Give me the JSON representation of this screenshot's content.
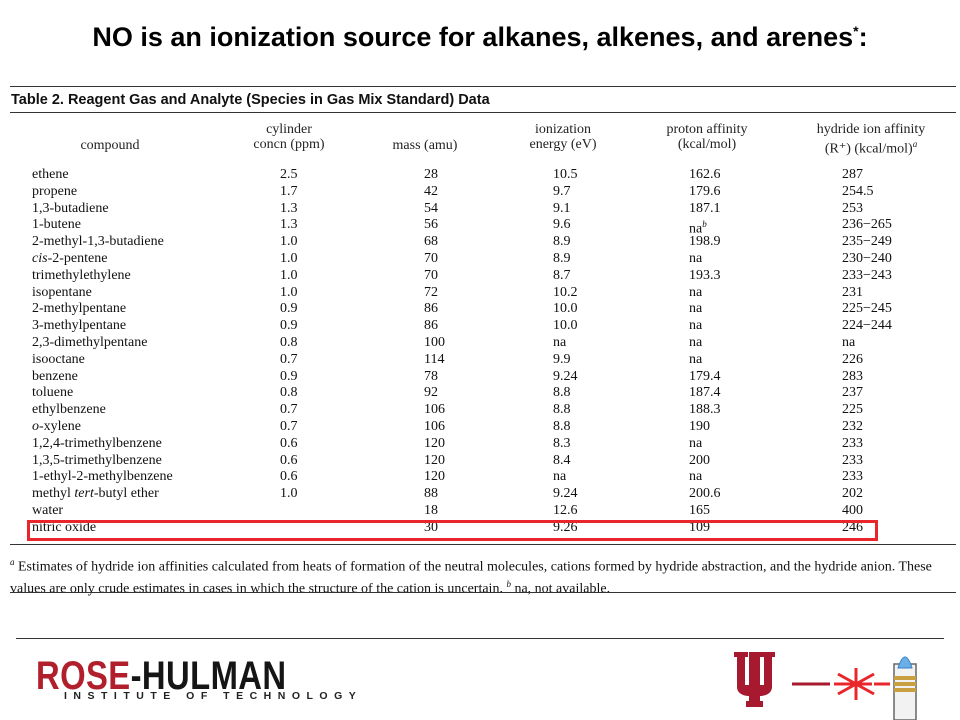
{
  "slide": {
    "title": "NO is an ionization source for alkanes, alkenes, and arenes",
    "title_sup": "*",
    "title_end": ":"
  },
  "table": {
    "title": "Table 2.  Reagent Gas and Analyte (Species in Gas Mix Standard) Data",
    "headers": {
      "compound": "compound",
      "concn_1": "cylinder",
      "concn_2": "concn (ppm)",
      "mass": "mass (amu)",
      "ie_1": "ionization",
      "ie_2": "energy (eV)",
      "pa_1": "proton affinity",
      "pa_2": "(kcal/mol)",
      "hia_1": "hydride ion affinity",
      "hia_2": "(R⁺)  (kcal/mol)",
      "hia_sup": "a"
    },
    "rows": [
      {
        "compound": "ethene",
        "concn": "2.5",
        "mass": "28",
        "ie": "10.5",
        "pa": "162.6",
        "hia": "287"
      },
      {
        "compound": "propene",
        "concn": "1.7",
        "mass": "42",
        "ie": "9.7",
        "pa": "179.6",
        "hia": "254.5"
      },
      {
        "compound": "1,3-butadiene",
        "concn": "1.3",
        "mass": "54",
        "ie": "9.1",
        "pa": "187.1",
        "hia": "253"
      },
      {
        "compound": "1-butene",
        "concn": "1.3",
        "mass": "56",
        "ie": "9.6",
        "pa": "na",
        "pa_sup": "b",
        "hia": "236−265"
      },
      {
        "compound": "2-methyl-1,3-butadiene",
        "concn": "1.0",
        "mass": "68",
        "ie": "8.9",
        "pa": "198.9",
        "hia": "235−249"
      },
      {
        "compound_italic": "cis",
        "compound": "-2-pentene",
        "concn": "1.0",
        "mass": "70",
        "ie": "8.9",
        "pa": "na",
        "hia": "230−240"
      },
      {
        "compound": "trimethylethylene",
        "concn": "1.0",
        "mass": "70",
        "ie": "8.7",
        "pa": "193.3",
        "hia": "233−243"
      },
      {
        "compound": "isopentane",
        "concn": "1.0",
        "mass": "72",
        "ie": "10.2",
        "pa": "na",
        "hia": "231"
      },
      {
        "compound": "2-methylpentane",
        "concn": "0.9",
        "mass": "86",
        "ie": "10.0",
        "pa": "na",
        "hia": "225−245"
      },
      {
        "compound": "3-methylpentane",
        "concn": "0.9",
        "mass": "86",
        "ie": "10.0",
        "pa": "na",
        "hia": "224−244"
      },
      {
        "compound": "2,3-dimethylpentane",
        "concn": "0.8",
        "mass": "100",
        "ie": "na",
        "pa": "na",
        "hia": "na"
      },
      {
        "compound": "isooctane",
        "concn": "0.7",
        "mass": "114",
        "ie": "9.9",
        "pa": "na",
        "hia": "226"
      },
      {
        "compound": "benzene",
        "concn": "0.9",
        "mass": "78",
        "ie": "9.24",
        "pa": "179.4",
        "hia": "283"
      },
      {
        "compound": "toluene",
        "concn": "0.8",
        "mass": "92",
        "ie": "8.8",
        "pa": "187.4",
        "hia": "237"
      },
      {
        "compound": "ethylbenzene",
        "concn": "0.7",
        "mass": "106",
        "ie": "8.8",
        "pa": "188.3",
        "hia": "225"
      },
      {
        "compound_italic": "o",
        "compound": "-xylene",
        "concn": "0.7",
        "mass": "106",
        "ie": "8.8",
        "pa": "190",
        "hia": "232"
      },
      {
        "compound": "1,2,4-trimethylbenzene",
        "concn": "0.6",
        "mass": "120",
        "ie": "8.3",
        "pa": "na",
        "hia": "233"
      },
      {
        "compound": "1,3,5-trimethylbenzene",
        "concn": "0.6",
        "mass": "120",
        "ie": "8.4",
        "pa": "200",
        "hia": "233"
      },
      {
        "compound": "1-ethyl-2-methylbenzene",
        "concn": "0.6",
        "mass": "120",
        "ie": "na",
        "pa": "na",
        "hia": "233"
      },
      {
        "compound": "methyl ",
        "compound_italic_mid": "tert",
        "compound_end": "-butyl ether",
        "concn": "1.0",
        "mass": "88",
        "ie": "9.24",
        "pa": "200.6",
        "hia": "202"
      },
      {
        "compound": "water",
        "concn": "",
        "mass": "18",
        "ie": "12.6",
        "pa": "165",
        "hia": "400"
      },
      {
        "compound": "nitric oxide",
        "concn": "",
        "mass": "30",
        "ie": "9.26",
        "pa": "109",
        "hia": "246",
        "highlighted": true
      }
    ],
    "footnote_a_mark": "a",
    "footnote_a": " Estimates of hydride ion affinities calculated from heats of formation of the neutral molecules, cations formed by hydride abstraction, and the hydride anion.  These values are only crude estimates in cases in which the structure of the cation is uncertain. ",
    "footnote_b_mark": "b",
    "footnote_b": " na, not available."
  },
  "footer": {
    "logo_rose": "ROSE",
    "logo_hulman": "-HULMAN",
    "logo_sub": "INSTITUTE OF TECHNOLOGY",
    "accent_red": "#b21f2c",
    "highlight_color": "#e8262b",
    "iu_logo": "iu-trident-logo",
    "laser_icon": "laser-icon"
  }
}
